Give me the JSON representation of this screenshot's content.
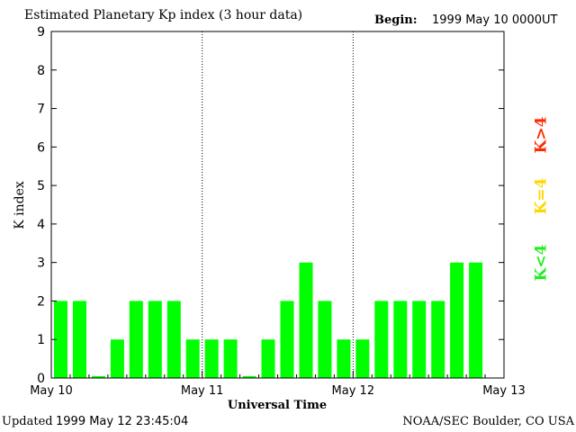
{
  "header": {
    "title": "Estimated Planetary Kp index (3 hour data)",
    "begin_label": "Begin:",
    "begin_value": "1999 May 10 0000UT"
  },
  "footer": {
    "updated_label": "Updated",
    "updated_value": "1999 May 12 23:45:04",
    "credit": "NOAA/SEC Boulder, CO USA"
  },
  "legend": {
    "high": {
      "label": "K>4",
      "color": "#ff2a00"
    },
    "mid": {
      "label": "K=4",
      "color": "#ffd700"
    },
    "low": {
      "label": "K<4",
      "color": "#22ee22"
    }
  },
  "colors": {
    "bar": "#00ff00"
  },
  "chart_data": {
    "type": "bar",
    "xlabel": "Universal Time",
    "ylabel": "K index",
    "ylim": [
      0,
      9
    ],
    "yticks": [
      0,
      1,
      2,
      3,
      4,
      5,
      6,
      7,
      8,
      9
    ],
    "xticks": [
      "May 10",
      "May 11",
      "May 12",
      "May 13"
    ],
    "day_dividers": [
      "May 11",
      "May 12"
    ],
    "values": [
      2,
      2,
      0.05,
      1,
      2,
      2,
      2,
      1,
      1,
      1,
      0.05,
      1,
      2,
      3,
      2,
      1,
      1,
      2,
      2,
      2,
      2,
      3,
      3
    ]
  }
}
